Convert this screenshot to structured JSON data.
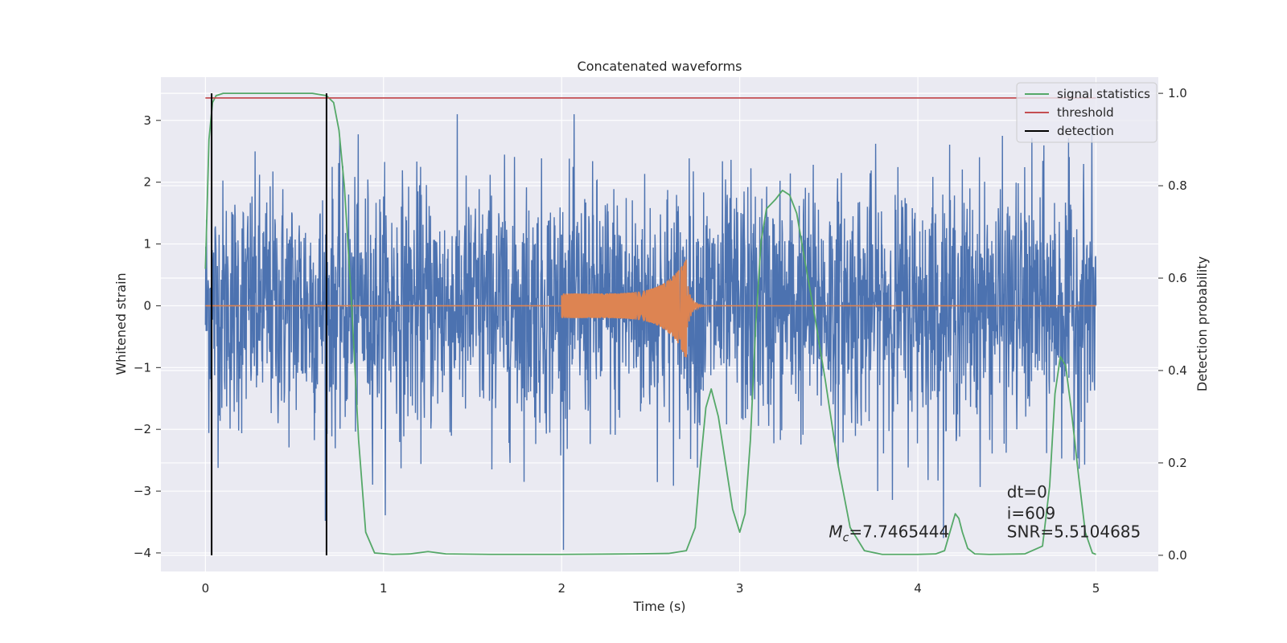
{
  "chart_data": {
    "type": "line",
    "title": "Concatenated waveforms",
    "xlabel": "Time (s)",
    "ylabel": "Whitened strain",
    "y2label": "Detection probability",
    "xlim": [
      -0.25,
      5.35
    ],
    "ylim": [
      -4.3,
      3.7
    ],
    "y2lim": [
      -0.035,
      1.035
    ],
    "xticks": [
      0,
      1,
      2,
      3,
      4,
      5
    ],
    "yticks": [
      -4,
      -3,
      -2,
      -1,
      0,
      1,
      2,
      3
    ],
    "y2ticks": [
      0.0,
      0.2,
      0.4,
      0.6,
      0.8,
      1.0
    ],
    "ytick_labels": [
      "−4",
      "−3",
      "−2",
      "−1",
      "0",
      "1",
      "2",
      "3"
    ],
    "y2tick_labels": [
      "0.0",
      "0.2",
      "0.4",
      "0.6",
      "0.8",
      "1.0"
    ],
    "xtick_labels": [
      "0",
      "1",
      "2",
      "3",
      "4",
      "5"
    ],
    "grid": true,
    "legend_position": "top-right",
    "colors": {
      "strain": "#4c72b0",
      "template": "#dd8452",
      "signal_statistics": "#55a868",
      "threshold": "#c44e52",
      "detection": "#000000",
      "background": "#eaeaf2",
      "grid": "#ffffff"
    },
    "legend": [
      {
        "label": "signal statistics",
        "color": "#55a868"
      },
      {
        "label": "threshold",
        "color": "#c44e52"
      },
      {
        "label": "detection",
        "color": "#000000"
      }
    ],
    "series": [
      {
        "name": "signal statistics",
        "axis": "right",
        "x": [
          0.0,
          0.02,
          0.04,
          0.06,
          0.1,
          0.2,
          0.4,
          0.6,
          0.68,
          0.72,
          0.75,
          0.78,
          0.82,
          0.86,
          0.9,
          0.95,
          1.05,
          1.15,
          1.25,
          1.35,
          1.6,
          2.0,
          2.4,
          2.6,
          2.7,
          2.75,
          2.78,
          2.81,
          2.84,
          2.88,
          2.92,
          2.96,
          3.0,
          3.03,
          3.06,
          3.09,
          3.12,
          3.15,
          3.2,
          3.24,
          3.28,
          3.32,
          3.36,
          3.42,
          3.48,
          3.55,
          3.62,
          3.7,
          3.8,
          4.0,
          4.1,
          4.15,
          4.18,
          4.21,
          4.23,
          4.25,
          4.28,
          4.32,
          4.4,
          4.6,
          4.7,
          4.74,
          4.77,
          4.8,
          4.83,
          4.86,
          4.9,
          4.94,
          4.98,
          5.0
        ],
        "y": [
          0.62,
          0.9,
          0.98,
          0.995,
          1.0,
          1.0,
          1.0,
          1.0,
          0.995,
          0.98,
          0.92,
          0.8,
          0.55,
          0.25,
          0.05,
          0.005,
          0.002,
          0.003,
          0.008,
          0.003,
          0.002,
          0.002,
          0.003,
          0.004,
          0.01,
          0.06,
          0.2,
          0.32,
          0.36,
          0.3,
          0.2,
          0.1,
          0.05,
          0.09,
          0.25,
          0.5,
          0.68,
          0.75,
          0.77,
          0.79,
          0.78,
          0.74,
          0.65,
          0.52,
          0.38,
          0.2,
          0.06,
          0.01,
          0.002,
          0.002,
          0.003,
          0.01,
          0.05,
          0.09,
          0.08,
          0.05,
          0.015,
          0.003,
          0.002,
          0.003,
          0.02,
          0.15,
          0.35,
          0.43,
          0.41,
          0.32,
          0.18,
          0.05,
          0.005,
          0.002
        ]
      },
      {
        "name": "threshold",
        "axis": "right",
        "x": [
          0.0,
          5.0
        ],
        "y": [
          0.99,
          0.99
        ]
      },
      {
        "name": "detection",
        "axis": "right",
        "type": "vlines",
        "x": [
          0.035,
          0.68
        ],
        "y_range": [
          0.0,
          1.0
        ]
      }
    ],
    "strain_envelope": {
      "x_range": [
        0.0,
        5.0
      ],
      "typical_abs": 1.0,
      "max": 3.1,
      "min": -3.95
    },
    "chirp": {
      "x_start": 2.0,
      "x_merger": 2.7,
      "amp_start": 0.2,
      "amp_peak_pos": 0.75,
      "amp_peak_neg": -0.88
    },
    "annotations": [
      {
        "text": "dt=0",
        "x": 4.5,
        "y": -3.1
      },
      {
        "text": "i=609",
        "x": 4.5,
        "y": -3.45
      },
      {
        "text": "SNR=5.5104685",
        "x": 4.5,
        "y": -3.75
      },
      {
        "text": "=7.7465444",
        "prefix_symbol": "M",
        "prefix_sub": "c",
        "x": 3.5,
        "y": -3.75
      }
    ]
  }
}
